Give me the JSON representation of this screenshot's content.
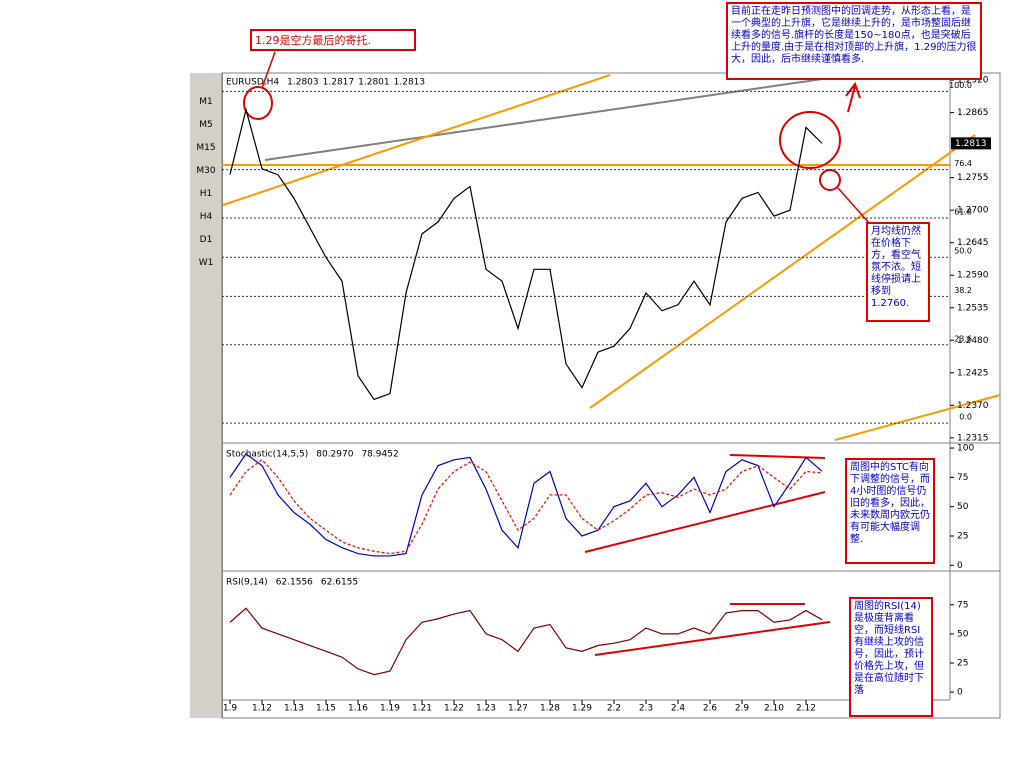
{
  "toolbar": {
    "timeframes": [
      "M1",
      "M5",
      "M15",
      "M30",
      "H1",
      "H4",
      "D1",
      "W1"
    ]
  },
  "chart_data": [
    {
      "type": "line",
      "title": "EURUSD,H4",
      "ohlc": [
        1.2803,
        1.2817,
        1.2801,
        1.2813
      ],
      "current": 1.2813,
      "ylim": [
        1.2308,
        1.2932
      ],
      "yticks": [
        {
          "value": 1.292,
          "label": "1.2920"
        },
        {
          "value": 1.2865,
          "label": "1.2865"
        },
        {
          "value": 1.2755,
          "label": "1.2755"
        },
        {
          "value": 1.27,
          "label": "1.2700"
        },
        {
          "value": 1.2645,
          "label": "1.2645"
        },
        {
          "value": 1.259,
          "label": "1.2590"
        },
        {
          "value": 1.2535,
          "label": "1.2535"
        },
        {
          "value": 1.248,
          "label": "1.2480"
        },
        {
          "value": 1.2425,
          "label": "1.2425"
        },
        {
          "value": 1.237,
          "label": "1.2370"
        },
        {
          "value": 1.2315,
          "label": "1.2315"
        }
      ],
      "fibonacci": {
        "high": 1.2901,
        "low": 1.234,
        "levels": [
          {
            "value": 100,
            "label": "100.0"
          },
          {
            "value": 76.4,
            "label": "76.4"
          },
          {
            "value": 61.8,
            "label": "61.8"
          },
          {
            "value": 50,
            "label": "50.0"
          },
          {
            "value": 38.2,
            "label": "38.2"
          },
          {
            "value": 23.6,
            "label": "23.6"
          },
          {
            "value": 0,
            "label": "0.0"
          }
        ]
      },
      "series": [
        {
          "name": "EURUSD",
          "color": "#000000",
          "values": [
            1.276,
            1.287,
            1.277,
            1.276,
            1.272,
            1.267,
            1.262,
            1.258,
            1.242,
            1.238,
            1.239,
            1.256,
            1.266,
            1.268,
            1.272,
            1.274,
            1.26,
            1.258,
            1.25,
            1.26,
            1.26,
            1.244,
            1.24,
            1.246,
            1.247,
            1.25,
            1.256,
            1.253,
            1.254,
            1.258,
            1.254,
            1.268,
            1.272,
            1.273,
            1.269,
            1.27,
            1.284,
            1.2813
          ]
        }
      ]
    },
    {
      "type": "line",
      "title": "Stochastic(14,5,5)",
      "readout": [
        {
          "value": 80.297,
          "label": "80.2970"
        },
        {
          "value": 78.9452,
          "label": "78.9452"
        }
      ],
      "ylim": [
        -4,
        102.6
      ],
      "yticks": [
        100,
        75,
        50,
        25,
        0
      ],
      "series": [
        {
          "name": "Main",
          "color": "#0000cc",
          "values": [
            75,
            95,
            85,
            60,
            45,
            35,
            22,
            15,
            10,
            8,
            8,
            10,
            60,
            85,
            90,
            92,
            65,
            30,
            15,
            70,
            80,
            40,
            25,
            30,
            50,
            55,
            70,
            50,
            60,
            75,
            45,
            80,
            90,
            85,
            50,
            70,
            92,
            80.3
          ]
        },
        {
          "name": "Signal",
          "color": "#ff0000",
          "dashed": true,
          "values": [
            60,
            80,
            90,
            75,
            55,
            40,
            30,
            20,
            15,
            12,
            10,
            12,
            35,
            65,
            80,
            88,
            80,
            55,
            30,
            40,
            60,
            60,
            40,
            30,
            38,
            48,
            60,
            62,
            58,
            65,
            60,
            65,
            80,
            85,
            75,
            65,
            80,
            78.9
          ]
        }
      ]
    },
    {
      "type": "line",
      "title": "RSI(9,14)",
      "readout": [
        {
          "value": 62.1556,
          "label": "62.1556"
        },
        {
          "value": 62.6155,
          "label": "62.6155"
        }
      ],
      "ylim": [
        -6.8,
        102.3
      ],
      "yticks": [
        75,
        50,
        25,
        0
      ],
      "categories": [
        "1.9",
        null,
        "1.12",
        null,
        "1.13",
        null,
        "1.15",
        null,
        "1.16",
        null,
        "1.19",
        null,
        "1.21",
        null,
        "1.22",
        null,
        "1.23",
        null,
        "1.27",
        null,
        "1.28",
        null,
        "1.29",
        null,
        "2.2",
        null,
        "2.3",
        null,
        "2.4",
        null,
        "2.6",
        null,
        "2.9",
        null,
        "2.10",
        null,
        "2.12",
        null
      ],
      "series": [
        {
          "name": "RSI",
          "color": "#800000",
          "values": [
            60,
            72,
            55,
            50,
            45,
            40,
            35,
            30,
            20,
            15,
            18,
            45,
            60,
            63,
            67,
            70,
            50,
            45,
            35,
            55,
            58,
            38,
            35,
            40,
            42,
            45,
            55,
            50,
            50,
            55,
            50,
            68,
            70,
            70,
            60,
            62,
            70,
            62.2
          ]
        }
      ]
    }
  ],
  "annotations": [
    "1.29是空方最后的寄托.",
    "目前正在走昨日预测图中的回调走势，从形态上看，是一个典型的上升旗，它是继续上升的，是市场整固后继续看多的信号.旗杆的长度是150~180点，也是突破后上升的量度.由于是在相对顶部的上升旗，1.29的压力很大，因此，后市继续谨慎看多.",
    "月均线仍然在价格下方，看空气氛不浓。短线停损请上移到1.2760.",
    "周图中的STC有向下调整的信号，而4小时图的信号仍旧的看多，因此，未来数周内欧元仍有可能大幅度调整.",
    "周图的RSI(14)是极度背离看空，而短线RSI有继续上攻的信号，因此，预计价格先上攻，但是在高位随时下落"
  ]
}
